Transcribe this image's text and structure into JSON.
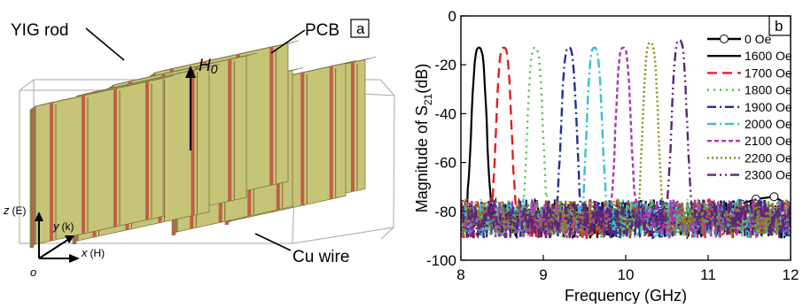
{
  "panel_a": {
    "label": "a",
    "annotations": {
      "yig_rod": "YIG rod",
      "pcb": "PCB",
      "h0": "H",
      "h0_sub": "0",
      "cu_wire": "Cu wire"
    },
    "axes": {
      "z": "z",
      "z_field": "(E)",
      "y": "y",
      "y_field": "(k)",
      "x": "x",
      "x_field": "(H)",
      "origin": "o"
    },
    "colors": {
      "slab": "#c6c477",
      "slab_dark": "#aaa85e",
      "rod": "#c15e4a",
      "box": "#a9a9a9"
    }
  },
  "chart_data": {
    "type": "line",
    "panel_label": "b",
    "xlabel": "Frequency (GHz)",
    "ylabel_prefix": "Magnitude of S",
    "ylabel_sub": "21",
    "ylabel_suffix": "(dB)",
    "xlim": [
      8,
      12
    ],
    "ylim": [
      -100,
      0
    ],
    "xticks": [
      8,
      9,
      10,
      11,
      12
    ],
    "yticks": [
      0,
      -20,
      -40,
      -60,
      -80,
      -100
    ],
    "legend_position": "top-right",
    "series": [
      {
        "name": "0 Oe",
        "color": "#000000",
        "dash": "",
        "marker": "circle",
        "peak_freq": null,
        "peak_db": null,
        "values": [
          [
            8.0,
            -77
          ],
          [
            8.05,
            -80
          ],
          [
            8.12,
            -81
          ],
          [
            8.6,
            -82
          ],
          [
            9.0,
            -83
          ],
          [
            9.6,
            -84
          ],
          [
            10.0,
            -83
          ],
          [
            10.2,
            -81
          ],
          [
            10.5,
            -82
          ],
          [
            11.0,
            -79
          ],
          [
            11.4,
            -77
          ],
          [
            11.58,
            -75
          ],
          [
            11.8,
            -74
          ],
          [
            12.0,
            -78
          ]
        ]
      },
      {
        "name": "1600 Oe",
        "color": "#000000",
        "dash": "",
        "marker": "",
        "peak_freq": 8.22,
        "peak_db": -13
      },
      {
        "name": "1700 Oe",
        "color": "#e0201f",
        "dash": "11,6",
        "marker": "",
        "peak_freq": 8.52,
        "peak_db": -13
      },
      {
        "name": "1800 Oe",
        "color": "#4bbf3c",
        "dash": "2,5",
        "marker": "",
        "peak_freq": 8.9,
        "peak_db": -13
      },
      {
        "name": "1900 Oe",
        "color": "#1f2f9c",
        "dash": "10,4,2,4",
        "marker": "",
        "peak_freq": 9.31,
        "peak_db": -13
      },
      {
        "name": "2000 Oe",
        "color": "#38c1cc",
        "dash": "10,4,2,4",
        "marker": "",
        "peak_freq": 9.62,
        "peak_db": -13
      },
      {
        "name": "2100 Oe",
        "color": "#a83cae",
        "dash": "5,3",
        "marker": "",
        "peak_freq": 9.97,
        "peak_db": -13
      },
      {
        "name": "2200 Oe",
        "color": "#8a8a14",
        "dash": "2,3",
        "marker": "",
        "peak_freq": 10.3,
        "peak_db": -11
      },
      {
        "name": "2300 Oe",
        "color": "#5b2578",
        "dash": "10,4,2,4,2,4",
        "marker": "",
        "peak_freq": 10.65,
        "peak_db": -10
      }
    ]
  }
}
